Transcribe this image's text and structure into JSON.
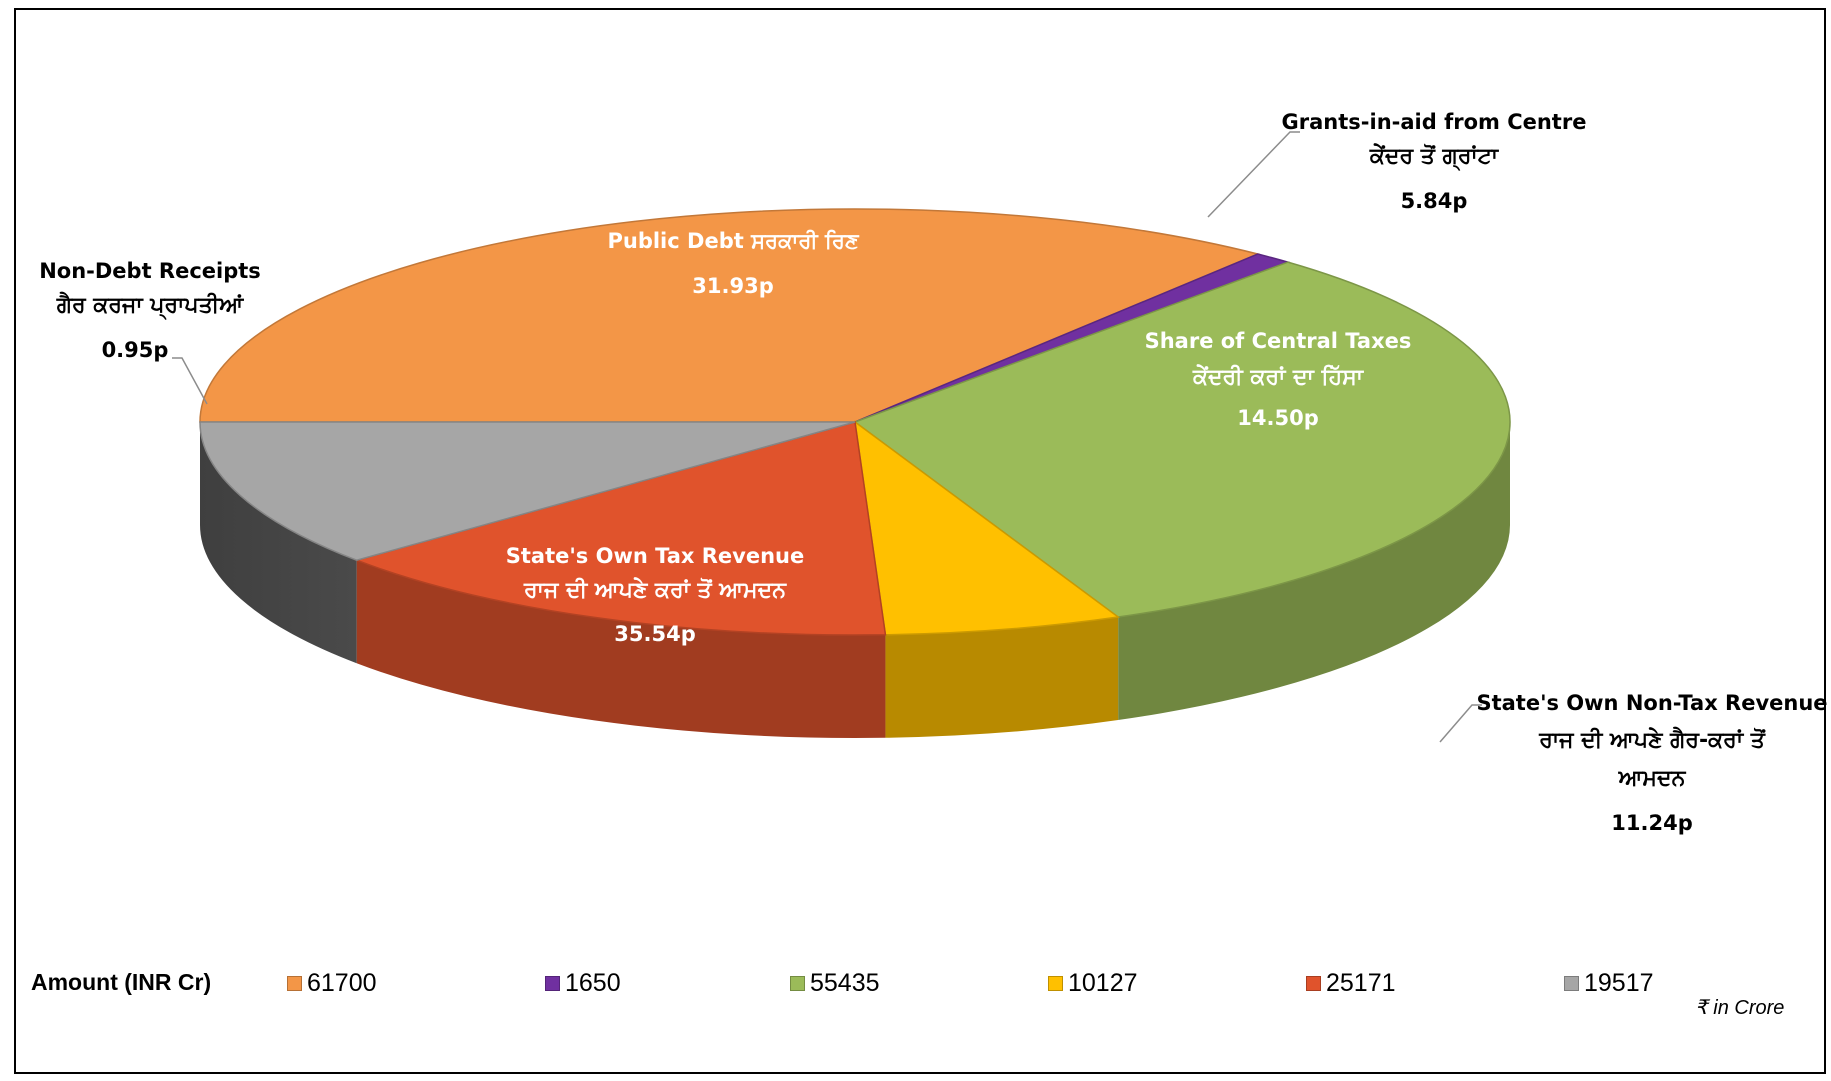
{
  "chart_data": {
    "type": "pie",
    "slices": [
      {
        "key": "own_tax",
        "label_en": "State's Own Tax Revenue",
        "label_pa": "ਰਾਜ ਦੀ ਆਪਣੇ ਕਰਾਂ ਤੋਂ ਆਮਦਨ",
        "value": 35.54,
        "value_label": "35.54p",
        "amount": "61700",
        "color": "#F39647"
      },
      {
        "key": "non_debt",
        "label_en": "Non-Debt Receipts",
        "label_pa": "ਗੈਰ ਕਰਜਾ ਪ੍ਰਾਪਤੀਆਂ",
        "value": 0.95,
        "value_label": "0.95p",
        "amount": "1650",
        "color": "#7030A0"
      },
      {
        "key": "public_debt",
        "label_en": "Public Debt ਸਰਕਾਰੀ ਰਿਣ",
        "label_pa": "",
        "value": 31.93,
        "value_label": "31.93p",
        "amount": "55435",
        "color": "#9BBB59"
      },
      {
        "key": "grants",
        "label_en": "Grants-in-aid from Centre",
        "label_pa": "ਕੇਂਦਰ ਤੋਂ ਗ੍ਰਾਂਟਾ",
        "value": 5.84,
        "value_label": "5.84p",
        "amount": "10127",
        "color": "#FFC000"
      },
      {
        "key": "central_taxes",
        "label_en": "Share of Central Taxes",
        "label_pa": "ਕੇਂਦਰੀ ਕਰਾਂ ਦਾ ਹਿੱਸਾ",
        "value": 14.5,
        "value_label": "14.50p",
        "amount": "25171",
        "color": "#E0532C"
      },
      {
        "key": "non_tax",
        "label_en": "State's Own Non-Tax Revenue",
        "label_pa": "ਰਾਜ ਦੀ ਆਪਣੇ ਗੈਰ-ਕਰਾਂ ਤੋਂ",
        "label_pa2": "ਆਮਦਨ",
        "value": 11.24,
        "value_label": "11.24p",
        "amount": "19517",
        "color": "#A6A6A6"
      }
    ],
    "legend": {
      "title": "Amount (INR Cr)",
      "placement": "bottom"
    },
    "unit_note": "₹ in Crore"
  }
}
